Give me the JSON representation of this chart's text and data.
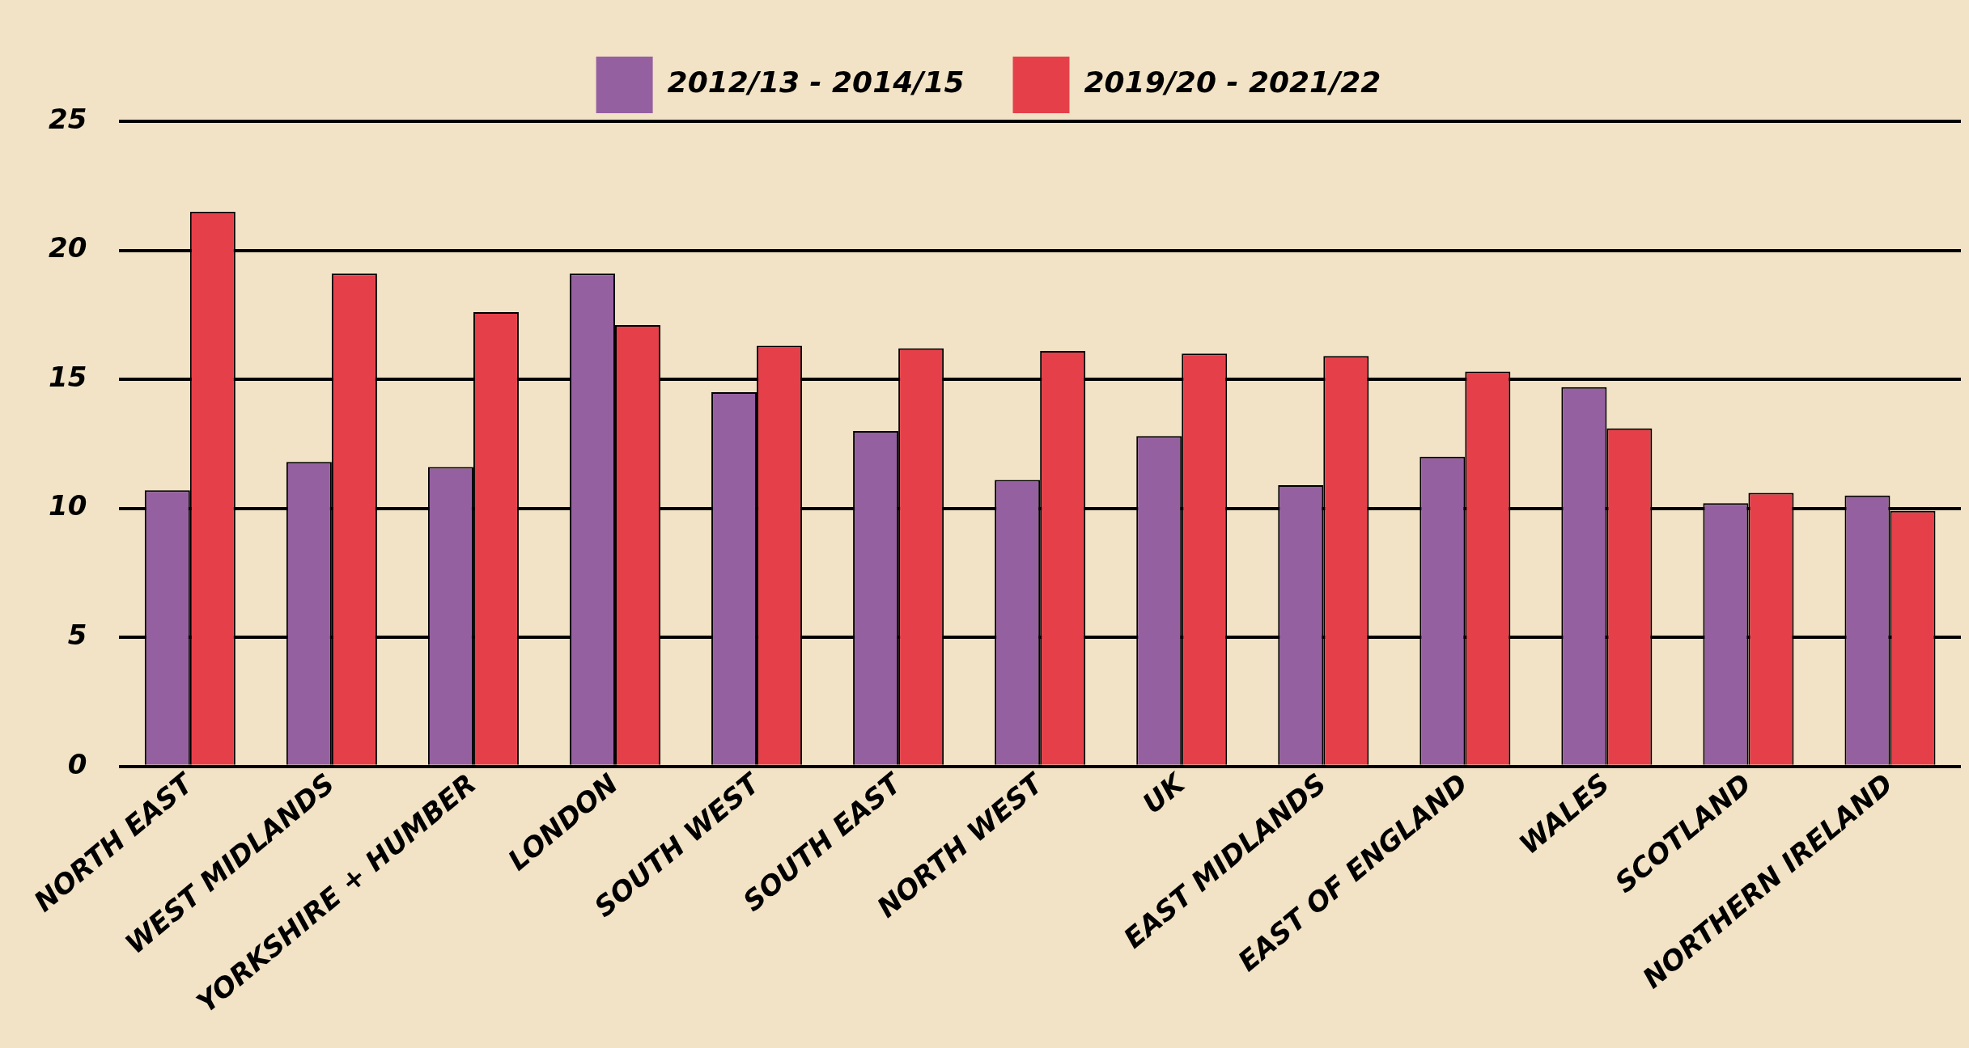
{
  "chart_data": {
    "type": "bar",
    "categories": [
      "NORTH EAST",
      "WEST MIDLANDS",
      "YORKSHIRE + HUMBER",
      "LONDON",
      "SOUTH WEST",
      "SOUTH EAST",
      "NORTH WEST",
      "UK",
      "EAST MIDLANDS",
      "EAST OF ENGLAND",
      "WALES",
      "SCOTLAND",
      "NORTHERN IRELAND"
    ],
    "series": [
      {
        "name": "2012/13 - 2014/15",
        "color": "#9560a0",
        "values": [
          10.7,
          11.8,
          11.6,
          19.1,
          14.5,
          13.0,
          11.1,
          12.8,
          10.9,
          12.0,
          14.7,
          10.2,
          10.5
        ]
      },
      {
        "name": "2019/20 - 2021/22",
        "color": "#e5404a",
        "values": [
          21.5,
          19.1,
          17.6,
          17.1,
          16.3,
          16.2,
          16.1,
          16.0,
          15.9,
          15.3,
          13.1,
          10.6,
          9.9
        ]
      }
    ],
    "ylim": [
      0,
      25
    ],
    "yticks": [
      0,
      5,
      10,
      15,
      20,
      25
    ],
    "grid": "y",
    "legend": "top"
  }
}
